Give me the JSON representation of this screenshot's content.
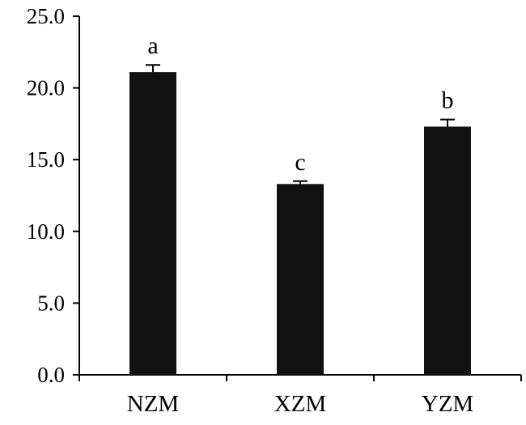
{
  "chart_data": {
    "type": "bar",
    "categories": [
      "NZM",
      "XZM",
      "YZM"
    ],
    "values": [
      21.1,
      13.3,
      17.3
    ],
    "errors": [
      0.5,
      0.2,
      0.5
    ],
    "significance": [
      "a",
      "c",
      "b"
    ],
    "ylim": [
      0,
      25
    ],
    "yticks": [
      0,
      5,
      10,
      15,
      20,
      25
    ],
    "ytick_labels": [
      "0.0",
      "5.0",
      "10.0",
      "15.0",
      "20.0",
      "25.0"
    ],
    "title": "",
    "xlabel": "",
    "ylabel": "",
    "grid": false,
    "legend": "none",
    "bar_color": "#111111"
  }
}
